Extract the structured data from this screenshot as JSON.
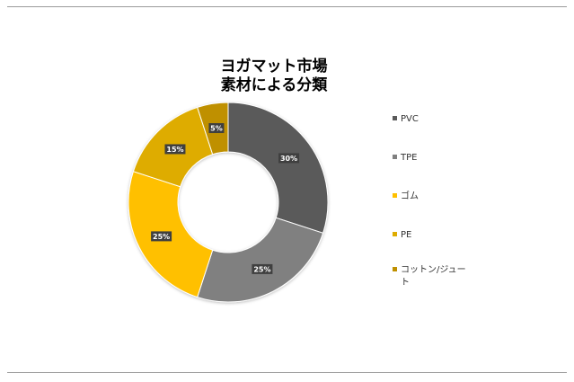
{
  "chart_data": {
    "type": "pie",
    "donut": true,
    "title_lines": [
      "ヨガマット市場",
      "素材による分類"
    ],
    "categories": [
      "PVC",
      "TPE",
      "ゴム",
      "PE",
      "コットン/ジュート"
    ],
    "values": [
      30,
      25,
      25,
      15,
      5
    ],
    "labels": [
      "30%",
      "25%",
      "25%",
      "15%",
      "5%"
    ],
    "colors": [
      "#5a5a5a",
      "#808080",
      "#ffc000",
      "#deac00",
      "#bf9000"
    ],
    "legend_position": "right"
  }
}
